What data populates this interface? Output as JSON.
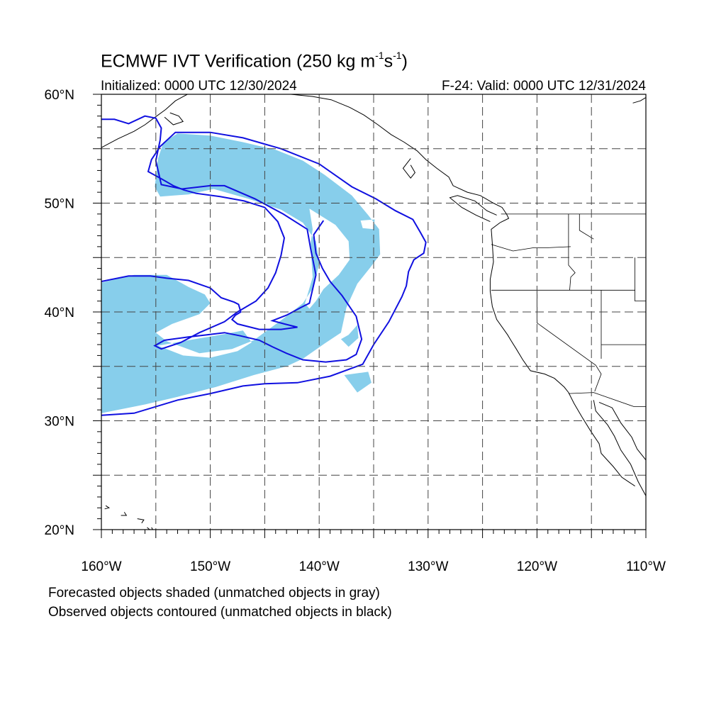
{
  "title": {
    "prefix": "ECMWF IVT Verification (250 kg m",
    "sup1": "-1",
    "mid": "s",
    "sup2": "-1",
    "suffix": ")"
  },
  "initialized": "Initialized: 0000 UTC 12/30/2024",
  "valid": "F-24: Valid: 0000 UTC 12/31/2024",
  "footnotes": {
    "forecast": "Forecasted objects shaded (unmatched objects in gray)",
    "observed": "Observed objects contoured (unmatched objects in black)"
  },
  "map": {
    "lon_range": [
      -160,
      -110
    ],
    "lat_range": [
      20,
      60
    ],
    "lon_ticks": [
      {
        "value": -160,
        "label": "160°W"
      },
      {
        "value": -150,
        "label": "150°W"
      },
      {
        "value": -140,
        "label": "140°W"
      },
      {
        "value": -130,
        "label": "130°W"
      },
      {
        "value": -120,
        "label": "120°W"
      },
      {
        "value": -110,
        "label": "110°W"
      }
    ],
    "lat_ticks": [
      {
        "value": 20,
        "label": "20°N"
      },
      {
        "value": 30,
        "label": "30°N"
      },
      {
        "value": 40,
        "label": "40°N"
      },
      {
        "value": 50,
        "label": "50°N"
      },
      {
        "value": 60,
        "label": "60°N"
      }
    ],
    "grid_lon": [
      -155,
      -150,
      -145,
      -140,
      -135,
      -130,
      -125,
      -120,
      -115
    ],
    "grid_lat": [
      25,
      30,
      35,
      40,
      45,
      50,
      55
    ],
    "colors": {
      "forecast_fill": "#87ceeb",
      "observed_contour": "#1010e0",
      "coastline": "#000000",
      "grid": "#444444"
    },
    "forecast_object": {
      "outer": [
        [
          -160,
          42.7
        ],
        [
          -157,
          43.4
        ],
        [
          -154,
          43.4
        ],
        [
          -152,
          42.3
        ],
        [
          -150.5,
          41.6
        ],
        [
          -150,
          40.8
        ],
        [
          -151,
          39.8
        ],
        [
          -153.5,
          38.9
        ],
        [
          -155,
          38.1
        ],
        [
          -154,
          37.3
        ],
        [
          -151,
          36.2
        ],
        [
          -148,
          36.6
        ],
        [
          -146,
          37.4
        ],
        [
          -144.5,
          38.5
        ],
        [
          -143,
          39.6
        ],
        [
          -141.5,
          40.8
        ],
        [
          -140.5,
          42.3
        ],
        [
          -140,
          44.5
        ],
        [
          -140.3,
          46.5
        ],
        [
          -141.5,
          48.2
        ],
        [
          -143.5,
          49.4
        ],
        [
          -146.5,
          50.4
        ],
        [
          -149.7,
          51.3
        ],
        [
          -152,
          50.8
        ],
        [
          -154.6,
          50.6
        ],
        [
          -155.1,
          51.5
        ],
        [
          -154.8,
          54.1
        ],
        [
          -154.3,
          55.6
        ],
        [
          -153,
          56.4
        ],
        [
          -150,
          56.2
        ],
        [
          -147,
          55.6
        ],
        [
          -144,
          54.9
        ],
        [
          -141.5,
          53.9
        ],
        [
          -139.5,
          52.6
        ],
        [
          -137,
          50.7
        ],
        [
          -135.5,
          48.9
        ],
        [
          -134.5,
          47.6
        ],
        [
          -134.4,
          45.3
        ],
        [
          -135.3,
          44.1
        ],
        [
          -136.5,
          42.6
        ],
        [
          -137.5,
          40.4
        ],
        [
          -138,
          38.1
        ],
        [
          -139.5,
          37.1
        ],
        [
          -141.5,
          35.7
        ],
        [
          -143,
          35
        ],
        [
          -146,
          34.2
        ],
        [
          -149.5,
          33.1
        ],
        [
          -153,
          32.2
        ],
        [
          -156,
          31.5
        ],
        [
          -160,
          30.7
        ]
      ],
      "holes": [
        [
          [
            -140.9,
            49.5
          ],
          [
            -138.5,
            48
          ],
          [
            -137.3,
            46.5
          ],
          [
            -137.2,
            44.8
          ],
          [
            -138.2,
            43.4
          ],
          [
            -139.6,
            42.1
          ],
          [
            -140.3,
            41
          ],
          [
            -140.9,
            40.3
          ],
          [
            -141.3,
            40.8
          ],
          [
            -140.6,
            43.2
          ],
          [
            -140.8,
            46.2
          ],
          [
            -140.6,
            47.6
          ]
        ],
        [
          [
            -154.8,
            36.9
          ],
          [
            -152,
            37.4
          ],
          [
            -148.5,
            38
          ],
          [
            -147,
            38.3
          ],
          [
            -146.2,
            37.2
          ],
          [
            -147.5,
            36.4
          ],
          [
            -150,
            35.8
          ],
          [
            -152.5,
            36
          ]
        ],
        [
          [
            -138,
            37.5
          ],
          [
            -137.3,
            37.9
          ],
          [
            -136.5,
            38.8
          ],
          [
            -136.4,
            37.6
          ],
          [
            -137.3,
            36.8
          ]
        ],
        [
          [
            -137.7,
            34.2
          ],
          [
            -135.5,
            34.5
          ],
          [
            -135.2,
            33.5
          ],
          [
            -136.5,
            32.6
          ]
        ],
        [
          [
            -136.2,
            48.4
          ],
          [
            -134.9,
            48.5
          ],
          [
            -135,
            47.6
          ],
          [
            -136,
            47.7
          ]
        ]
      ]
    },
    "observed_contour": [
      [
        -160,
        42.8
      ],
      [
        -157.5,
        43.3
      ],
      [
        -155.5,
        43.3
      ],
      [
        -154,
        43.1
      ],
      [
        -152,
        42.9
      ],
      [
        -150,
        42.2
      ],
      [
        -149,
        41.3
      ],
      [
        -147.8,
        40.9
      ],
      [
        -147.4,
        40.7
      ],
      [
        -147.2,
        40
      ],
      [
        -147.7,
        39.7
      ],
      [
        -148,
        39.3
      ],
      [
        -147.5,
        38.9
      ],
      [
        -145.5,
        38.4
      ],
      [
        -143.5,
        38.4
      ],
      [
        -142,
        38.6
      ],
      [
        -143.2,
        38.9
      ],
      [
        -144.3,
        39.2
      ],
      [
        -143,
        39.7
      ],
      [
        -141.7,
        40.4
      ],
      [
        -140.9,
        40.8
      ],
      [
        -140.3,
        43.4
      ],
      [
        -140.8,
        45.9
      ],
      [
        -141.1,
        47.6
      ],
      [
        -143.3,
        49
      ],
      [
        -145.9,
        50.4
      ],
      [
        -148.7,
        51.6
      ],
      [
        -150,
        51.6
      ],
      [
        -152.6,
        51.3
      ],
      [
        -154.5,
        51.7
      ],
      [
        -155,
        53.9
      ],
      [
        -154.6,
        55.8
      ],
      [
        -154.5,
        56.9
      ],
      [
        -155,
        57.8
      ],
      [
        -156,
        58
      ],
      [
        -157.5,
        57.3
      ],
      [
        -158.8,
        57.7
      ],
      [
        -160,
        57.7
      ]
    ],
    "observed_contour_south": [
      [
        -160,
        30.5
      ],
      [
        -157,
        30.7
      ],
      [
        -153,
        31.9
      ],
      [
        -150,
        32.5
      ],
      [
        -147,
        33.2
      ],
      [
        -145,
        33.4
      ],
      [
        -142,
        33.5
      ],
      [
        -139,
        34.1
      ],
      [
        -136,
        35.2
      ],
      [
        -135,
        37
      ],
      [
        -133.6,
        39.1
      ],
      [
        -132.4,
        41.4
      ],
      [
        -132,
        42.4
      ],
      [
        -131.8,
        43.7
      ],
      [
        -131.3,
        44.8
      ],
      [
        -130.4,
        45.4
      ],
      [
        -130.2,
        46.4
      ],
      [
        -130.7,
        47.3
      ],
      [
        -131.4,
        48.5
      ],
      [
        -133,
        49.3
      ],
      [
        -134.8,
        50.4
      ],
      [
        -137,
        51.5
      ],
      [
        -140,
        53.6
      ],
      [
        -143.5,
        55
      ],
      [
        -147,
        56
      ],
      [
        -150,
        56.5
      ],
      [
        -153.2,
        56.5
      ],
      [
        -154.6,
        55.2
      ],
      [
        -155.4,
        54
      ],
      [
        -155.7,
        52.9
      ],
      [
        -154.6,
        52.3
      ],
      [
        -153.4,
        51.6
      ],
      [
        -152.4,
        51.2
      ],
      [
        -151.3,
        50.9
      ],
      [
        -149.1,
        50.6
      ],
      [
        -146.9,
        50.2
      ],
      [
        -145,
        49.6
      ],
      [
        -143.8,
        48.3
      ],
      [
        -143.2,
        46.8
      ],
      [
        -143.5,
        45.2
      ],
      [
        -144,
        43.6
      ],
      [
        -144.7,
        42.2
      ],
      [
        -145.8,
        41
      ],
      [
        -147.5,
        40
      ],
      [
        -148.7,
        39.1
      ],
      [
        -151,
        38.1
      ],
      [
        -152.7,
        37.2
      ],
      [
        -154.5,
        36.6
      ],
      [
        -155.1,
        36.9
      ],
      [
        -154.2,
        37.4
      ],
      [
        -152,
        37.7
      ],
      [
        -150.3,
        37.9
      ],
      [
        -148.7,
        38.1
      ],
      [
        -147.2,
        37.8
      ],
      [
        -145.5,
        37.4
      ],
      [
        -144.3,
        36.8
      ],
      [
        -143,
        36.2
      ],
      [
        -141.5,
        35.6
      ],
      [
        -139.4,
        35.4
      ],
      [
        -137.5,
        35.6
      ],
      [
        -136.6,
        36.1
      ],
      [
        -136.1,
        37.5
      ],
      [
        -136.6,
        39.6
      ],
      [
        -137.9,
        41.5
      ],
      [
        -139,
        42.8
      ],
      [
        -139.7,
        44
      ],
      [
        -140.3,
        45.4
      ],
      [
        -140.5,
        47.1
      ],
      [
        -139.6,
        48.4
      ]
    ],
    "coastlines": [
      [
        [
          -123.4,
          48.2
        ],
        [
          -124.2,
          47.6
        ],
        [
          -124.1,
          46.3
        ],
        [
          -124,
          44.6
        ],
        [
          -124.3,
          43
        ],
        [
          -124.3,
          41.9
        ],
        [
          -124.1,
          40.5
        ],
        [
          -123.7,
          39.3
        ],
        [
          -122.7,
          37.9
        ],
        [
          -122.4,
          37.4
        ],
        [
          -121.9,
          36.6
        ],
        [
          -121.3,
          35.6
        ],
        [
          -120.6,
          34.6
        ],
        [
          -119.3,
          34.3
        ],
        [
          -118.4,
          33.9
        ],
        [
          -117.5,
          33.1
        ],
        [
          -117.1,
          32.6
        ],
        [
          -116.6,
          31.6
        ],
        [
          -115.9,
          30.4
        ],
        [
          -115.1,
          29.1
        ],
        [
          -114.3,
          27.9
        ],
        [
          -114.1,
          27
        ],
        [
          -113,
          25.8
        ],
        [
          -112.2,
          24.8
        ],
        [
          -111,
          24
        ]
      ],
      [
        [
          -114.8,
          31.9
        ],
        [
          -114.6,
          30.9
        ],
        [
          -113.5,
          29.6
        ],
        [
          -112.9,
          28.6
        ],
        [
          -112.3,
          27.3
        ],
        [
          -111.4,
          26
        ],
        [
          -110.7,
          24.4
        ],
        [
          -110,
          23.1
        ]
      ],
      [
        [
          -114.3,
          31.7
        ],
        [
          -113.1,
          31.2
        ],
        [
          -112.3,
          29.8
        ],
        [
          -111.3,
          28.5
        ],
        [
          -110.8,
          27.4
        ],
        [
          -110,
          26.4
        ]
      ],
      [
        [
          -123.4,
          48.2
        ],
        [
          -122.6,
          48.6
        ],
        [
          -122.8,
          49
        ],
        [
          -123.2,
          49.6
        ],
        [
          -124,
          50
        ],
        [
          -125.2,
          50.7
        ],
        [
          -126.4,
          51
        ],
        [
          -127.7,
          51.6
        ],
        [
          -128.1,
          52.4
        ],
        [
          -129.2,
          53.2
        ],
        [
          -130.2,
          54
        ],
        [
          -131,
          54.8
        ],
        [
          -132.2,
          55.6
        ],
        [
          -133.4,
          56.3
        ],
        [
          -134.6,
          57.2
        ],
        [
          -135.9,
          58.1
        ],
        [
          -137.2,
          58.8
        ],
        [
          -138.9,
          59.5
        ],
        [
          -140.6,
          59.8
        ],
        [
          -142.6,
          60
        ]
      ],
      [
        [
          -131.6,
          54.1
        ],
        [
          -132.3,
          53.2
        ],
        [
          -131.6,
          52.3
        ],
        [
          -131.2,
          52.8
        ],
        [
          -131.6,
          53.5
        ]
      ],
      [
        [
          -124.3,
          48.3
        ],
        [
          -125.6,
          48.9
        ],
        [
          -126.9,
          49.6
        ],
        [
          -128,
          50.5
        ],
        [
          -127.3,
          50.7
        ],
        [
          -125.7,
          50.2
        ],
        [
          -124.6,
          49.3
        ],
        [
          -123.7,
          48.9
        ]
      ],
      [
        [
          -154.2,
          57.9
        ],
        [
          -153.4,
          57.2
        ],
        [
          -152.5,
          57.5
        ],
        [
          -152.9,
          58
        ],
        [
          -153.7,
          58.3
        ]
      ],
      [
        [
          -160,
          55.1
        ],
        [
          -158.5,
          55.9
        ],
        [
          -157,
          56.6
        ],
        [
          -156,
          57.2
        ],
        [
          -155.2,
          57.8
        ],
        [
          -154.1,
          58.6
        ],
        [
          -153.2,
          59.4
        ],
        [
          -152.1,
          60
        ]
      ],
      [
        [
          -155.8,
          20.2
        ],
        [
          -155,
          19.5
        ],
        [
          -155.4,
          20.2
        ]
      ],
      [
        [
          -156.7,
          21
        ],
        [
          -156.1,
          20.9
        ],
        [
          -156.3,
          20.6
        ]
      ],
      [
        [
          -157.9,
          21.6
        ],
        [
          -157.7,
          21.3
        ],
        [
          -158.2,
          21.3
        ]
      ],
      [
        [
          -159.6,
          22.2
        ],
        [
          -159.3,
          22
        ],
        [
          -159.7,
          21.9
        ]
      ],
      [
        [
          -110,
          59.7
        ],
        [
          -110.5,
          59.4
        ],
        [
          -111.2,
          59.2
        ]
      ]
    ],
    "borders": [
      [
        [
          -123.3,
          49
        ],
        [
          -110,
          49
        ]
      ],
      [
        [
          -124.2,
          46.2
        ],
        [
          -122.2,
          45.6
        ],
        [
          -120.3,
          45.9
        ],
        [
          -119,
          45.9
        ],
        [
          -116.9,
          46
        ]
      ],
      [
        [
          -117.1,
          49
        ],
        [
          -117.1,
          44.3
        ],
        [
          -116.5,
          43.6
        ],
        [
          -116.9,
          43.2
        ],
        [
          -117,
          42
        ]
      ],
      [
        [
          -124.2,
          42
        ],
        [
          -111,
          42
        ]
      ],
      [
        [
          -120,
          42
        ],
        [
          -120,
          39
        ],
        [
          -114.6,
          35.1
        ],
        [
          -114.1,
          34.3
        ],
        [
          -114.7,
          32.7
        ]
      ],
      [
        [
          -114.1,
          42
        ],
        [
          -114.1,
          35.7
        ]
      ],
      [
        [
          -114.1,
          37
        ],
        [
          -110,
          37
        ]
      ],
      [
        [
          -117.1,
          32.5
        ],
        [
          -114.8,
          32.6
        ],
        [
          -111.1,
          31.3
        ],
        [
          -110,
          31.3
        ]
      ],
      [
        [
          -111,
          45
        ],
        [
          -111,
          41
        ],
        [
          -110,
          41
        ]
      ],
      [
        [
          -116.1,
          49
        ],
        [
          -116.1,
          47.5
        ],
        [
          -114.8,
          46.7
        ]
      ]
    ]
  }
}
